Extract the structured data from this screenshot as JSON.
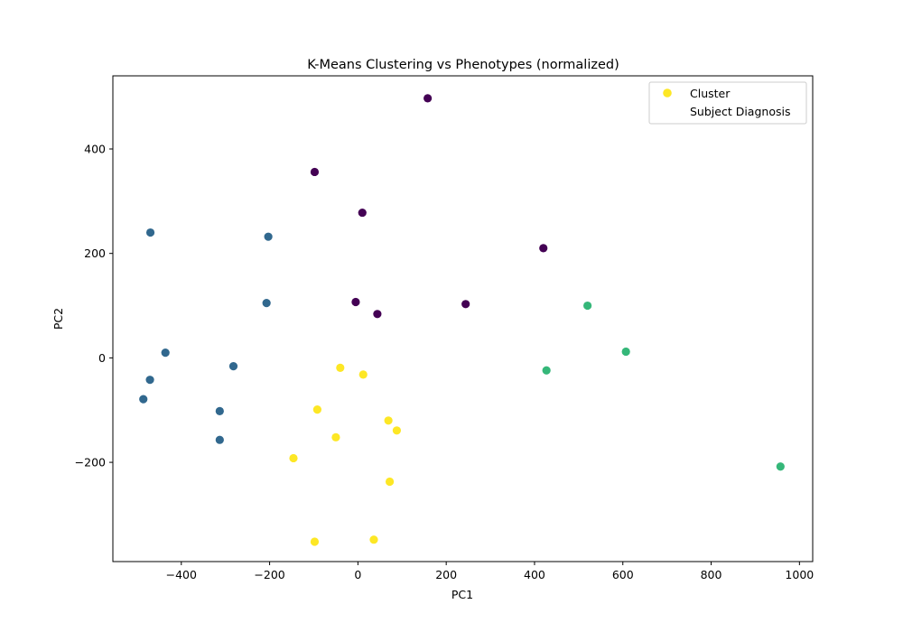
{
  "chart_data": {
    "type": "scatter",
    "title": "K-Means Clustering vs Phenotypes (normalized)",
    "xlabel": "PC1",
    "ylabel": "PC2",
    "xlim": [
      -555,
      1030
    ],
    "ylim": [
      -390,
      540
    ],
    "xticks": [
      -400,
      -200,
      0,
      200,
      400,
      600,
      800,
      1000
    ],
    "yticks": [
      -200,
      0,
      200,
      400
    ],
    "grid": false,
    "legend": {
      "position": "top-right",
      "entries": [
        {
          "label": "Cluster",
          "marker": true,
          "color": "#fde725"
        },
        {
          "label": "Subject Diagnosis",
          "marker": false,
          "color": ""
        }
      ]
    },
    "series": [
      {
        "color": "#440154",
        "points": [
          [
            158,
            497
          ],
          [
            -98,
            356
          ],
          [
            10,
            278
          ],
          [
            420,
            210
          ],
          [
            -5,
            107
          ],
          [
            44,
            84
          ],
          [
            244,
            103
          ]
        ]
      },
      {
        "color": "#31688e",
        "points": [
          [
            -470,
            240
          ],
          [
            -203,
            232
          ],
          [
            -207,
            105
          ],
          [
            -436,
            10
          ],
          [
            -471,
            -42
          ],
          [
            -282,
            -16
          ],
          [
            -486,
            -79
          ],
          [
            -313,
            -102
          ],
          [
            -313,
            -157
          ]
        ]
      },
      {
        "color": "#35b779",
        "points": [
          [
            520,
            100
          ],
          [
            607,
            12
          ],
          [
            427,
            -24
          ],
          [
            957,
            -208
          ]
        ]
      },
      {
        "color": "#fde725",
        "points": [
          [
            -40,
            -19
          ],
          [
            12,
            -32
          ],
          [
            -92,
            -99
          ],
          [
            69,
            -120
          ],
          [
            88,
            -139
          ],
          [
            -50,
            -152
          ],
          [
            -146,
            -192
          ],
          [
            72,
            -237
          ],
          [
            -98,
            -352
          ],
          [
            36,
            -348
          ]
        ]
      }
    ]
  }
}
